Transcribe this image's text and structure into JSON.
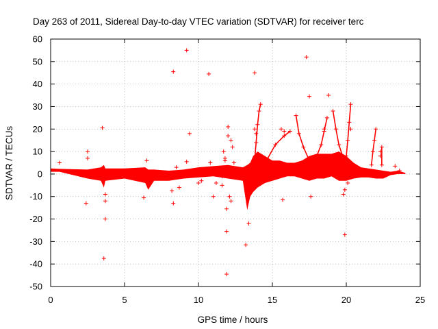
{
  "chart_data": {
    "type": "scatter",
    "title": "Day 263 of 2011, Sidereal Day-to-day VTEC variation (SDTVAR) for receiver terc",
    "xlabel": "GPS time / hours",
    "ylabel": "SDTVAR / TECUs",
    "xlim": [
      0,
      25
    ],
    "ylim": [
      -50,
      60
    ],
    "xticks": [
      0,
      5,
      10,
      15,
      20,
      25
    ],
    "yticks": [
      -50,
      -40,
      -30,
      -20,
      -10,
      0,
      10,
      20,
      30,
      40,
      50,
      60
    ],
    "grid": true,
    "marker": "+",
    "color": "#ff0000",
    "series": [
      {
        "name": "SDTVAR",
        "dense_band": [
          [
            0.0,
            1.0,
            2.5
          ],
          [
            0.6,
            1.0,
            2.3
          ],
          [
            2.5,
            -2,
            2
          ],
          [
            3.4,
            -3,
            3
          ],
          [
            3.6,
            -6,
            4
          ],
          [
            3.7,
            -3,
            2.5
          ],
          [
            5.0,
            -2,
            2.5
          ],
          [
            6.4,
            -4,
            3
          ],
          [
            6.6,
            -7,
            2
          ],
          [
            7.0,
            -3,
            2
          ],
          [
            8.0,
            -3,
            1.5
          ],
          [
            9.0,
            -2,
            2
          ],
          [
            10.0,
            -1.5,
            3
          ],
          [
            11.0,
            -1,
            3.5
          ],
          [
            12.0,
            -2,
            4
          ],
          [
            13.0,
            -3,
            3
          ],
          [
            13.3,
            -16,
            4
          ],
          [
            13.5,
            -10,
            5
          ],
          [
            13.7,
            -8,
            8
          ],
          [
            14.0,
            -6,
            10
          ],
          [
            14.5,
            -4,
            8
          ],
          [
            15.0,
            -3,
            6
          ],
          [
            15.5,
            -2,
            6
          ],
          [
            16.0,
            -1,
            5
          ],
          [
            16.5,
            -1,
            5
          ],
          [
            17.0,
            -2,
            6
          ],
          [
            17.5,
            -3,
            8
          ],
          [
            18.0,
            -2,
            9
          ],
          [
            18.5,
            -2,
            9
          ],
          [
            19.0,
            -1,
            9
          ],
          [
            19.5,
            -3,
            10
          ],
          [
            20.0,
            -3,
            8
          ],
          [
            20.5,
            -2,
            5
          ],
          [
            21.0,
            -1.5,
            3
          ],
          [
            21.5,
            -1.5,
            2.5
          ],
          [
            22.0,
            -2,
            2
          ],
          [
            22.5,
            -2,
            1.5
          ],
          [
            23.0,
            -0.5,
            1
          ],
          [
            23.5,
            0,
            1.5
          ],
          [
            24.0,
            0,
            0.5
          ]
        ],
        "spikes": [
          [
            [
              13.8,
              6
            ],
            [
              13.9,
              14
            ],
            [
              14.0,
              22
            ],
            [
              14.1,
              28
            ],
            [
              14.2,
              31
            ]
          ],
          [
            [
              14.2,
              1
            ],
            [
              14.6,
              6
            ],
            [
              15.2,
              13
            ],
            [
              15.8,
              17
            ],
            [
              16.2,
              19
            ]
          ],
          [
            [
              16.6,
              26
            ],
            [
              16.8,
              18
            ],
            [
              17.1,
              12
            ],
            [
              17.5,
              6
            ],
            [
              18.0,
              2
            ]
          ],
          [
            [
              17.6,
              3
            ],
            [
              18.0,
              8
            ],
            [
              18.3,
              13
            ],
            [
              18.5,
              19
            ],
            [
              18.7,
              25
            ]
          ],
          [
            [
              19.1,
              28
            ],
            [
              19.3,
              20
            ],
            [
              19.5,
              13
            ],
            [
              19.8,
              7
            ],
            [
              20.1,
              3
            ]
          ],
          [
            [
              19.8,
              2
            ],
            [
              20.0,
              8
            ],
            [
              20.1,
              15
            ],
            [
              20.2,
              23
            ],
            [
              20.3,
              31
            ]
          ],
          [
            [
              21.7,
              4
            ],
            [
              21.8,
              10
            ],
            [
              21.9,
              15
            ],
            [
              22.0,
              20
            ]
          ],
          [
            [
              22.4,
              4
            ],
            [
              22.4,
              12
            ]
          ]
        ],
        "points": [
          [
            0.6,
            5
          ],
          [
            2.4,
            -13
          ],
          [
            2.5,
            10
          ],
          [
            2.5,
            7
          ],
          [
            3.5,
            20.5
          ],
          [
            3.6,
            -37.5
          ],
          [
            3.7,
            -20
          ],
          [
            3.7,
            -12
          ],
          [
            3.7,
            -9
          ],
          [
            6.3,
            -10.5
          ],
          [
            6.5,
            6
          ],
          [
            8.3,
            45.5
          ],
          [
            8.3,
            -13
          ],
          [
            8.2,
            -7.5
          ],
          [
            8.5,
            3
          ],
          [
            8.7,
            -6
          ],
          [
            9.2,
            5.5
          ],
          [
            9.2,
            55
          ],
          [
            9.4,
            18
          ],
          [
            10.0,
            -4
          ],
          [
            10.2,
            -3
          ],
          [
            10.7,
            44.5
          ],
          [
            10.8,
            5
          ],
          [
            11.0,
            -10
          ],
          [
            11.2,
            -4
          ],
          [
            11.5,
            0
          ],
          [
            11.6,
            -5
          ],
          [
            11.6,
            -1
          ],
          [
            11.7,
            10
          ],
          [
            11.8,
            6
          ],
          [
            11.8,
            7
          ],
          [
            11.9,
            -15.5
          ],
          [
            11.9,
            -25.5
          ],
          [
            11.9,
            -44.5
          ],
          [
            12.0,
            21
          ],
          [
            12.0,
            17
          ],
          [
            12.1,
            -10
          ],
          [
            12.2,
            -12
          ],
          [
            12.2,
            15
          ],
          [
            12.3,
            12
          ],
          [
            12.4,
            5
          ],
          [
            13.2,
            -31.5
          ],
          [
            13.4,
            -22
          ],
          [
            13.8,
            45
          ],
          [
            13.8,
            20
          ],
          [
            13.9,
            18
          ],
          [
            15.6,
            20
          ],
          [
            15.7,
            -11.5
          ],
          [
            15.8,
            19
          ],
          [
            17.3,
            52
          ],
          [
            17.5,
            34.5
          ],
          [
            17.6,
            -10
          ],
          [
            18.5,
            20
          ],
          [
            18.8,
            35
          ],
          [
            19.8,
            -9
          ],
          [
            19.9,
            -7
          ],
          [
            19.9,
            -27
          ],
          [
            20.1,
            -4
          ],
          [
            20.3,
            20
          ],
          [
            22.3,
            10
          ],
          [
            22.3,
            8
          ],
          [
            23.3,
            3.5
          ],
          [
            23.6,
            1.5
          ]
        ]
      }
    ]
  }
}
